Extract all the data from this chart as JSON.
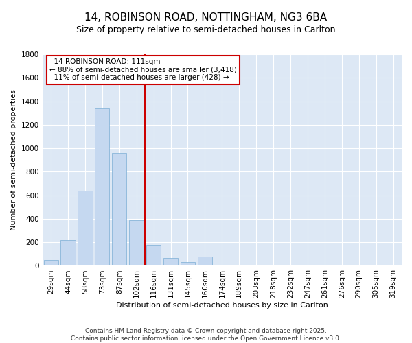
{
  "title": "14, ROBINSON ROAD, NOTTINGHAM, NG3 6BA",
  "subtitle": "Size of property relative to semi-detached houses in Carlton",
  "xlabel": "Distribution of semi-detached houses by size in Carlton",
  "ylabel": "Number of semi-detached properties",
  "bar_color": "#c5d8f0",
  "bar_edge_color": "#7aadd4",
  "background_color": "#dde8f5",
  "grid_color": "#ffffff",
  "categories": [
    "29sqm",
    "44sqm",
    "58sqm",
    "73sqm",
    "87sqm",
    "102sqm",
    "116sqm",
    "131sqm",
    "145sqm",
    "160sqm",
    "174sqm",
    "189sqm",
    "203sqm",
    "218sqm",
    "232sqm",
    "247sqm",
    "261sqm",
    "276sqm",
    "290sqm",
    "305sqm",
    "319sqm"
  ],
  "values": [
    50,
    220,
    640,
    1340,
    960,
    390,
    175,
    65,
    30,
    80,
    0,
    0,
    0,
    0,
    0,
    0,
    0,
    0,
    0,
    0,
    0
  ],
  "vline_x": 5.5,
  "vline_label": "14 ROBINSON ROAD: 111sqm",
  "pct_smaller": "88%",
  "n_smaller": "3,418",
  "pct_larger": "11%",
  "n_larger": "428",
  "ylim": [
    0,
    1800
  ],
  "yticks": [
    0,
    200,
    400,
    600,
    800,
    1000,
    1200,
    1400,
    1600,
    1800
  ],
  "footer_line1": "Contains HM Land Registry data © Crown copyright and database right 2025.",
  "footer_line2": "Contains public sector information licensed under the Open Government Licence v3.0.",
  "red_line_color": "#cc0000",
  "annotation_box_color": "#cc0000",
  "title_fontsize": 11,
  "subtitle_fontsize": 9,
  "axis_label_fontsize": 8,
  "tick_fontsize": 7.5,
  "annotation_fontsize": 7.5,
  "footer_fontsize": 6.5
}
